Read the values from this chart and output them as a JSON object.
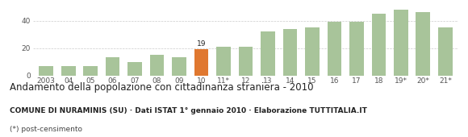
{
  "categories": [
    "2003",
    "04",
    "05",
    "06",
    "07",
    "08",
    "09",
    "10",
    "11*",
    "12",
    "13",
    "14",
    "15",
    "16",
    "17",
    "18",
    "19*",
    "20*",
    "21*"
  ],
  "values": [
    7,
    7,
    7,
    13,
    10,
    15,
    13,
    19,
    21,
    21,
    32,
    34,
    35,
    39,
    39,
    45,
    48,
    46,
    35
  ],
  "highlight_index": 7,
  "bar_color_normal": "#a8c49a",
  "bar_color_highlight": "#e07830",
  "title": "Andamento della popolazione con cittadinanza straniera - 2010",
  "subtitle": "COMUNE DI NURAMINIS (SU) · Dati ISTAT 1° gennaio 2010 · Elaborazione TUTTITALIA.IT",
  "footnote": "(*) post-censimento",
  "yticks": [
    0,
    20,
    40
  ],
  "ylim": [
    0,
    52
  ],
  "grid_color": "#cccccc",
  "background_color": "#ffffff",
  "title_fontsize": 8.5,
  "subtitle_fontsize": 6.5,
  "footnote_fontsize": 6.5,
  "tick_fontsize": 6.5,
  "annotation_value": "19",
  "annotation_index": 7
}
